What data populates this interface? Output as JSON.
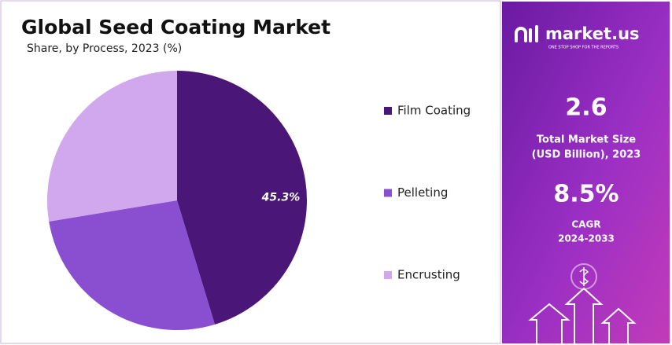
{
  "chart_data": {
    "type": "pie",
    "title": "Global Seed Coating Market",
    "subtitle": "Share, by Process, 2023 (%)",
    "categories": [
      "Film Coating",
      "Pelleting",
      "Encrusting"
    ],
    "values": [
      45.3,
      27.1,
      27.6
    ],
    "value_labels": [
      "45.3%",
      null,
      null
    ],
    "colors": [
      "#4a1778",
      "#8a4fd0",
      "#d1a7ee"
    ]
  },
  "sidebar": {
    "brand": "market.us",
    "tagline": "ONE STOP SHOP FOR THE REPORTS",
    "market_size": "2.6",
    "market_size_label_1": "Total Market Size",
    "market_size_label_2": "(USD Billion), 2023",
    "cagr": "8.5%",
    "cagr_label_1": "CAGR",
    "cagr_label_2": "2024-2033"
  }
}
